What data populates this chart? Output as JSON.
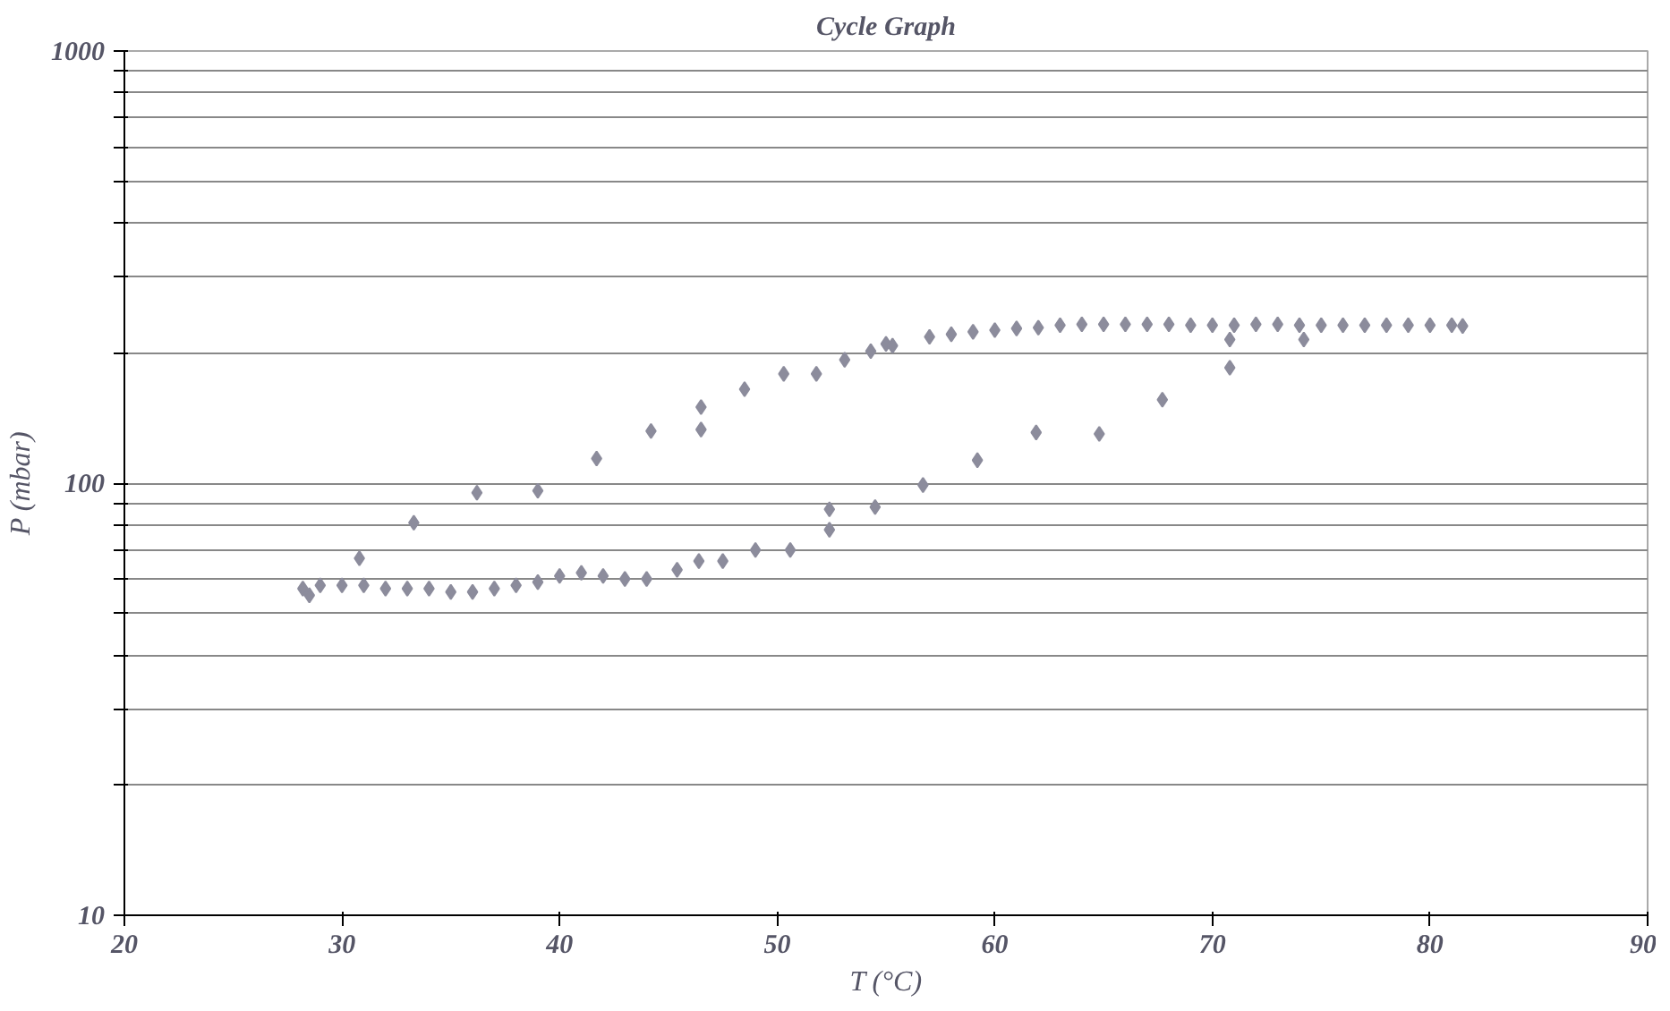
{
  "chart_data": {
    "type": "scatter",
    "title": "Cycle Graph",
    "xlabel": "T (°C)",
    "ylabel": "P (mbar)",
    "log": "y",
    "grid": "y",
    "marker": "diamond",
    "xlim": [
      20,
      90
    ],
    "xticks": [
      20,
      30,
      40,
      50,
      60,
      70,
      80,
      90
    ],
    "ylim": [
      10,
      1000
    ],
    "yticks": [
      10,
      {
        "value": 20,
        "label": null
      },
      {
        "value": 30,
        "label": null
      },
      {
        "value": 40,
        "label": null
      },
      {
        "value": 50,
        "label": null
      },
      {
        "value": 60,
        "label": null
      },
      {
        "value": 70,
        "label": null
      },
      {
        "value": 80,
        "label": null
      },
      {
        "value": 90,
        "label": null
      },
      100,
      {
        "value": 200,
        "label": null
      },
      {
        "value": 300,
        "label": null
      },
      {
        "value": 400,
        "label": null
      },
      {
        "value": 500,
        "label": null
      },
      {
        "value": 600,
        "label": null
      },
      {
        "value": 700,
        "label": null
      },
      {
        "value": 800,
        "label": null
      },
      {
        "value": 900,
        "label": null
      },
      1000
    ],
    "series": [
      {
        "color": "#8c8c9c",
        "x": [
          28.2,
          28.5,
          29,
          30,
          30.8,
          31,
          32,
          33,
          33.3,
          34,
          35,
          36,
          36.2,
          37,
          38,
          39,
          39,
          40,
          41,
          41.7,
          42,
          43,
          44,
          44.2,
          45.4,
          46.4,
          46.5,
          46.5,
          47.5,
          48.5,
          49,
          50.3,
          50.6,
          51.8,
          52.4,
          52.4,
          53.1,
          54.3,
          54.5,
          55,
          55.3,
          56.7,
          57,
          58,
          59,
          59.2,
          60,
          61,
          61.9,
          62,
          63,
          64,
          64.8,
          65,
          66,
          67,
          67.7,
          68,
          69,
          70,
          70.8,
          70.8,
          71,
          72,
          73,
          74,
          74.2,
          75,
          76,
          77,
          78,
          79,
          80,
          81,
          81.5
        ],
        "values": [
          57,
          55,
          58,
          58,
          67,
          58,
          57,
          57,
          81,
          57,
          56,
          56,
          95,
          57,
          58,
          59,
          96,
          61,
          62,
          114,
          61,
          60,
          60,
          132,
          63,
          66,
          150,
          133,
          66,
          165,
          70,
          179,
          70,
          179,
          87,
          78,
          193,
          202,
          88,
          210,
          208,
          99,
          218,
          221,
          224,
          113,
          226,
          228,
          131,
          229,
          232,
          233,
          130,
          233,
          233,
          233,
          156,
          233,
          232,
          232,
          185,
          215,
          232,
          233,
          233,
          232,
          215,
          232,
          232,
          232,
          232,
          232,
          232,
          232,
          231
        ]
      }
    ]
  }
}
